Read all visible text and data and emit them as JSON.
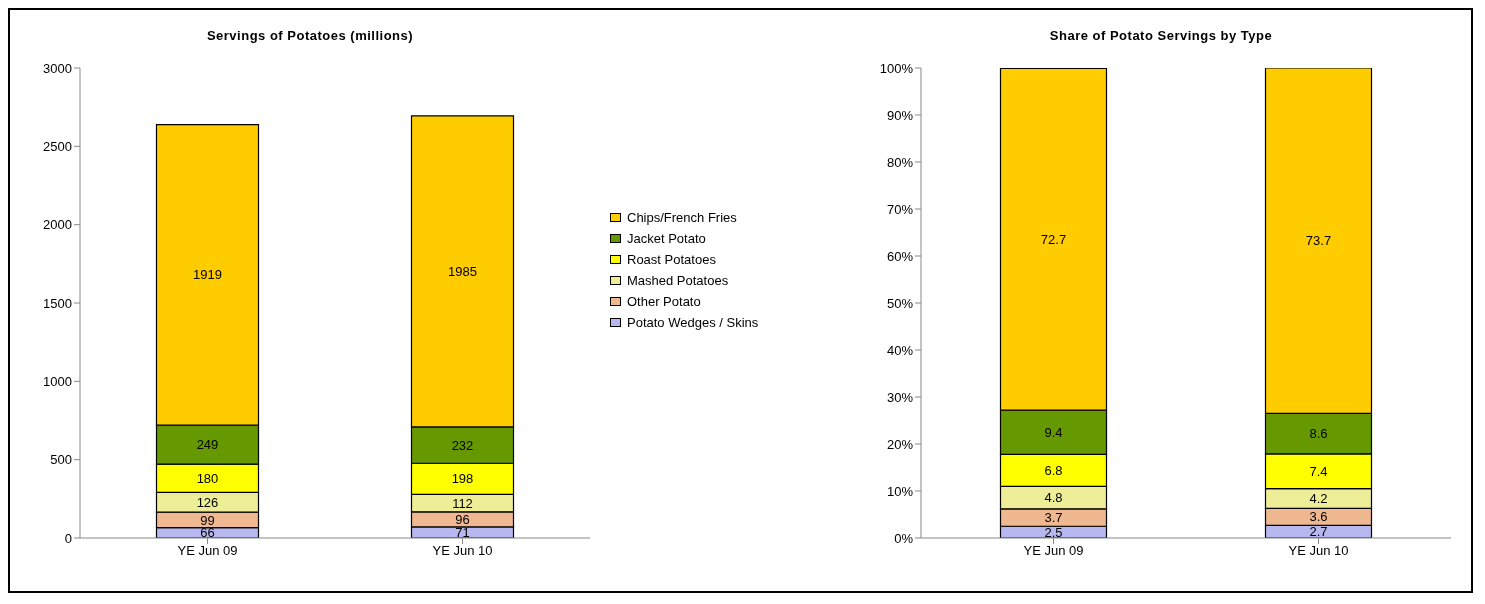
{
  "chart_data": [
    {
      "type": "bar",
      "title": "Servings of Potatoes (millions)",
      "categories": [
        "YE Jun 09",
        "YE Jun 10"
      ],
      "stacked": true,
      "data_labels": true,
      "legend": "right",
      "grid": false,
      "ylim": [
        0,
        3000
      ],
      "yticks": [
        0,
        500,
        1000,
        1500,
        2000,
        2500,
        3000
      ],
      "series": [
        {
          "name": "Potato Wedges / Skins",
          "color": "#b8b8f0",
          "values": [
            66,
            71
          ]
        },
        {
          "name": "Other Potato",
          "color": "#f0b890",
          "values": [
            99,
            96
          ]
        },
        {
          "name": "Mashed Potatoes",
          "color": "#eeee99",
          "values": [
            126,
            112
          ]
        },
        {
          "name": "Roast Potatoes",
          "color": "#ffff00",
          "values": [
            180,
            198
          ]
        },
        {
          "name": "Jacket Potato",
          "color": "#669900",
          "values": [
            249,
            232
          ]
        },
        {
          "name": "Chips/French Fries",
          "color": "#ffcc00",
          "values": [
            1919,
            1985
          ]
        }
      ]
    },
    {
      "type": "bar",
      "title": "Share of Potato Servings by Type",
      "categories": [
        "YE Jun 09",
        "YE Jun 10"
      ],
      "stacked": true,
      "data_labels": true,
      "grid": false,
      "ylim": [
        0,
        100
      ],
      "yticks": [
        {
          "value": 0,
          "label": "0%"
        },
        {
          "value": 10,
          "label": "10%"
        },
        {
          "value": 20,
          "label": "20%"
        },
        {
          "value": 30,
          "label": "30%"
        },
        {
          "value": 40,
          "label": "40%"
        },
        {
          "value": 50,
          "label": "50%"
        },
        {
          "value": 60,
          "label": "60%"
        },
        {
          "value": 70,
          "label": "70%"
        },
        {
          "value": 80,
          "label": "80%"
        },
        {
          "value": 90,
          "label": "90%"
        },
        {
          "value": 100,
          "label": "100%"
        }
      ],
      "series": [
        {
          "color": "#b8b8f0",
          "values": [
            2.5,
            2.7
          ]
        },
        {
          "color": "#f0b890",
          "values": [
            3.7,
            3.6
          ]
        },
        {
          "color": "#eeee99",
          "values": [
            4.8,
            4.2
          ]
        },
        {
          "color": "#ffff00",
          "values": [
            6.8,
            7.4
          ]
        },
        {
          "color": "#669900",
          "values": [
            9.4,
            8.6
          ]
        },
        {
          "color": "#ffcc00",
          "values": [
            72.7,
            73.7
          ]
        }
      ]
    }
  ]
}
